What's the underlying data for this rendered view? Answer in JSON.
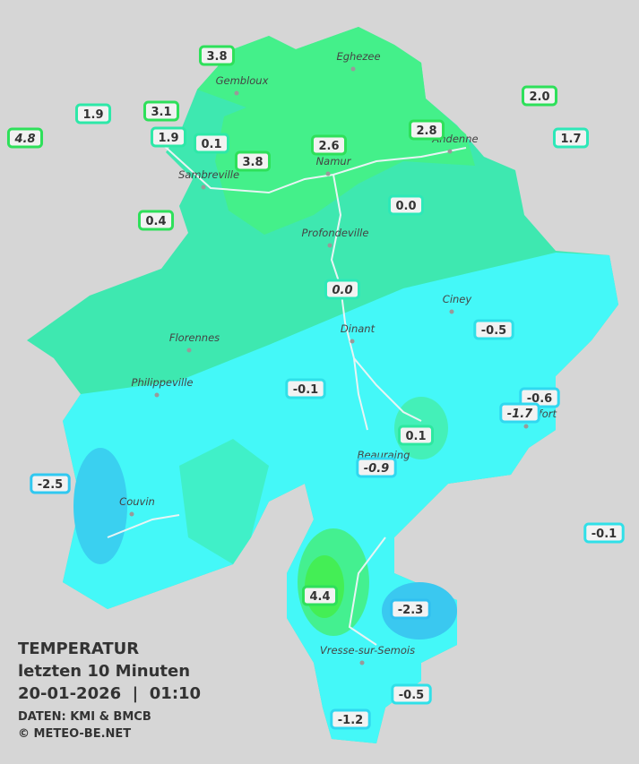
{
  "header": {
    "title": "TEMPERATUR",
    "subtitle": "letzten 10 Minuten",
    "datetime": "20-01-2026  |  01:10",
    "source": "DATEN: KMI & BMCB",
    "copyright": "© METEO-BE.NET"
  },
  "cities": [
    "Eghezee",
    "Gembloux",
    "Andenne",
    "Namur",
    "Sambreville",
    "Profondeville",
    "Ciney",
    "Dinant",
    "Florennes",
    "Philippeville",
    "Rochefort",
    "Beauraing",
    "Couvin",
    "Vresse-sur-Semois"
  ],
  "stations": [
    {
      "label": "3.8",
      "color": "#2ee05a",
      "italic": false
    },
    {
      "label": "1.9",
      "color": "#2de8a8",
      "italic": false
    },
    {
      "label": "3.1",
      "color": "#2ee05a",
      "italic": false
    },
    {
      "label": "4.8",
      "color": "#2ee05a",
      "italic": true
    },
    {
      "label": "1.9",
      "color": "#2de8a8",
      "italic": false
    },
    {
      "label": "0.1",
      "color": "#2de8a8",
      "italic": false
    },
    {
      "label": "2.6",
      "color": "#2ee05a",
      "italic": false
    },
    {
      "label": "3.8",
      "color": "#2ee05a",
      "italic": false
    },
    {
      "label": "2.8",
      "color": "#2ee05a",
      "italic": false
    },
    {
      "label": "2.0",
      "color": "#2ee05a",
      "italic": false
    },
    {
      "label": "1.7",
      "color": "#2de8b8",
      "italic": false
    },
    {
      "label": "0.4",
      "color": "#2ee05a",
      "italic": false
    },
    {
      "label": "0.0",
      "color": "#2de8b8",
      "italic": false
    },
    {
      "label": "0.0",
      "color": "#2de8b8",
      "italic": true
    },
    {
      "label": "-0.5",
      "color": "#30e0e8",
      "italic": false
    },
    {
      "label": "-0.1",
      "color": "#30e0e8",
      "italic": false
    },
    {
      "label": "-0.6",
      "color": "#30d8f0",
      "italic": false
    },
    {
      "label": "-1.7",
      "color": "#30d8f0",
      "italic": true
    },
    {
      "label": "0.1",
      "color": "#2de8a0",
      "italic": false
    },
    {
      "label": "-0.9",
      "color": "#30d8f0",
      "italic": true
    },
    {
      "label": "-2.5",
      "color": "#30c8f0",
      "italic": false
    },
    {
      "label": "-0.1",
      "color": "#30e0e8",
      "italic": false
    },
    {
      "label": "4.4",
      "color": "#2ee05a",
      "italic": false
    },
    {
      "label": "-2.3",
      "color": "#30c0f0",
      "italic": false
    },
    {
      "label": "-0.5",
      "color": "#30e0e8",
      "italic": false
    },
    {
      "label": "-1.2",
      "color": "#30d8f0",
      "italic": false
    }
  ]
}
